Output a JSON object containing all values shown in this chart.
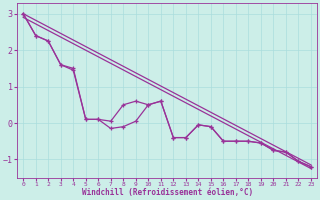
{
  "xlabel": "Windchill (Refroidissement éolien,°C)",
  "background_color": "#cceee8",
  "line_color": "#993399",
  "xlim": [
    -0.5,
    23.5
  ],
  "ylim": [
    -1.5,
    3.3
  ],
  "xticks": [
    0,
    1,
    2,
    3,
    4,
    5,
    6,
    7,
    8,
    9,
    10,
    11,
    12,
    13,
    14,
    15,
    16,
    17,
    18,
    19,
    20,
    21,
    22,
    23
  ],
  "yticks": [
    -1,
    0,
    1,
    2,
    3
  ],
  "grid_color": "#aadddd",
  "series": [
    {
      "x": [
        0,
        1,
        2,
        3,
        4,
        5,
        6,
        7,
        8,
        9,
        10,
        11,
        12,
        13,
        14,
        15,
        16,
        17,
        18,
        19,
        20,
        21,
        22,
        23
      ],
      "y": [
        3.0,
        2.4,
        2.25,
        1.6,
        1.5,
        0.1,
        0.1,
        0.05,
        0.5,
        0.6,
        0.5,
        0.6,
        -0.4,
        -0.4,
        -0.05,
        -0.1,
        -0.5,
        -0.5,
        -0.5,
        -0.55,
        -0.75,
        -0.8,
        -1.05,
        -1.2
      ],
      "has_markers": true
    },
    {
      "x": [
        0,
        1,
        2,
        3,
        4,
        5,
        6,
        7,
        8,
        9,
        10,
        11,
        12,
        13,
        14,
        15,
        16,
        17,
        18,
        19,
        20,
        21,
        22,
        23
      ],
      "y": [
        3.0,
        2.4,
        2.25,
        1.6,
        1.45,
        0.1,
        0.1,
        -0.15,
        -0.1,
        0.05,
        0.5,
        0.6,
        -0.4,
        -0.4,
        -0.05,
        -0.1,
        -0.5,
        -0.5,
        -0.5,
        -0.55,
        -0.75,
        -0.8,
        -1.05,
        -1.2
      ],
      "has_markers": true
    },
    {
      "x": [
        0,
        23
      ],
      "y": [
        3.0,
        -1.15
      ],
      "has_markers": false
    },
    {
      "x": [
        0,
        23
      ],
      "y": [
        2.9,
        -1.25
      ],
      "has_markers": false
    }
  ]
}
